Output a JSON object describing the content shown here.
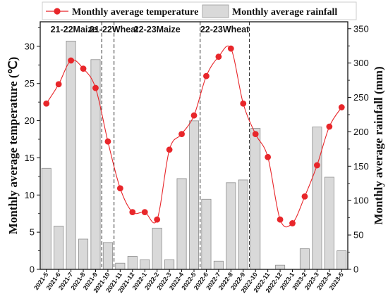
{
  "chart_data": {
    "type": "bar+line",
    "x_categories": [
      "2021-5",
      "2021-6",
      "2021-7",
      "2021-8",
      "2021-9",
      "2021-10",
      "2021-11",
      "2021-12",
      "2022-1",
      "2022-2",
      "2022-3",
      "2022-4",
      "2022-5",
      "2022-6",
      "2022-7",
      "2022-8",
      "2022-9",
      "2022-10",
      "2022-11",
      "2022-12",
      "2023-1",
      "2023-2",
      "2023-3",
      "2023-4",
      "2023-5"
    ],
    "y_left": {
      "label": "Monthly average temperature (℃)",
      "ticks": [
        "0",
        "5",
        "10",
        "15",
        "20",
        "25",
        "30"
      ],
      "range": [
        0,
        33.3
      ]
    },
    "y_right": {
      "label": "Monthly average rainfall (mm)",
      "ticks": [
        "0",
        "50",
        "100",
        "150",
        "200",
        "250",
        "300",
        "350"
      ],
      "range": [
        0,
        360
      ]
    },
    "legend": {
      "position": "top",
      "temperature_label": "Monthly average temperature",
      "rainfall_label": "Monthly average rainfall"
    },
    "periods": [
      {
        "label": "21-22Maize"
      },
      {
        "label": "21-22Wheat"
      },
      {
        "label": "22-23Maize"
      },
      {
        "label": "22-23Wheat"
      }
    ],
    "series": [
      {
        "name": "Monthly average rainfall",
        "kind": "bar",
        "axis": "right",
        "color": "#d9d9d9",
        "values": [
          147,
          63,
          332,
          44,
          305,
          39,
          9,
          19,
          14,
          60,
          14,
          132,
          216,
          102,
          12,
          126,
          130,
          205,
          0,
          6,
          0,
          30,
          207,
          134,
          27
        ]
      },
      {
        "name": "Monthly average temperature",
        "kind": "line",
        "axis": "left",
        "color": "#e8262a",
        "values": [
          22.3,
          24.9,
          28.1,
          27.0,
          24.4,
          17.2,
          10.9,
          7.7,
          7.7,
          6.7,
          16.1,
          18.2,
          20.7,
          26.0,
          28.6,
          29.7,
          22.3,
          18.2,
          15.1,
          6.7,
          6.2,
          9.8,
          14.0,
          19.2,
          21.8
        ]
      }
    ],
    "dashed_separators_after": [
      "2021-9",
      "2021-10",
      "2022-5",
      "2022-9"
    ]
  }
}
